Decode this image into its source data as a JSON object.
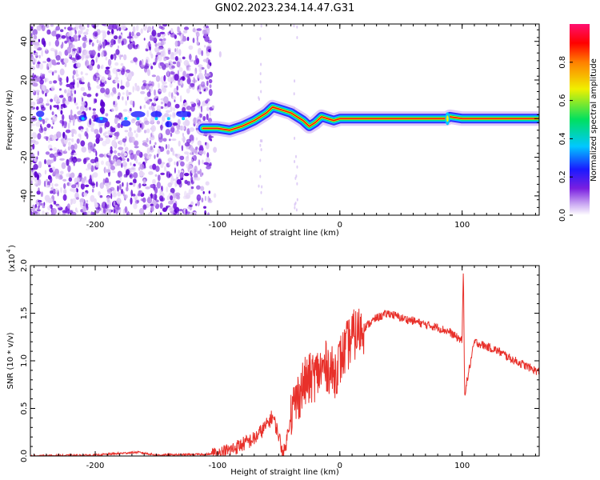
{
  "title": "GN02.2023.234.14.47.G31",
  "chart_data": [
    {
      "type": "heatmap",
      "xlabel": "Height of straight line (km)",
      "ylabel": "Frequency (Hz)",
      "xlim": [
        -253,
        163
      ],
      "ylim": [
        -50,
        49
      ],
      "x_ticks": [
        -200,
        -100,
        0,
        100
      ],
      "y_ticks": [
        -40,
        -20,
        0,
        20,
        40
      ],
      "colorbar": {
        "label": "Normalized spectral amplitude",
        "range": [
          0,
          1
        ],
        "ticks": [
          "0.0",
          "0.2",
          "0.4",
          "0.6",
          "0.8"
        ],
        "colormap": [
          "#ffffff",
          "#c9a6f2",
          "#7a1fe0",
          "#1a1aff",
          "#00c8ff",
          "#00e060",
          "#f0f000",
          "#ff8000",
          "#ff0000",
          "#ff1070"
        ]
      },
      "ridge": {
        "x": [
          -112,
          -100,
          -90,
          -80,
          -70,
          -60,
          -55,
          -50,
          -45,
          -40,
          -35,
          -30,
          -25,
          -20,
          -15,
          -10,
          -5,
          0,
          50,
          87,
          90,
          100,
          163
        ],
        "freq_hz": [
          -5,
          -5,
          -6,
          -4,
          -1,
          3,
          6,
          5,
          4,
          3,
          1,
          -1,
          -4,
          -2,
          1,
          0,
          -1,
          0,
          0,
          0,
          1,
          0,
          0
        ]
      },
      "noise_region_x": [
        -253,
        -105
      ]
    },
    {
      "type": "line",
      "xlabel": "Height of straight line (km)",
      "ylabel": "SNR (10 * v/v)",
      "y_scale_label": "(x10",
      "y_scale_exp": "4",
      "xlim": [
        -253,
        163
      ],
      "ylim": [
        0,
        2.0
      ],
      "x_ticks": [
        -200,
        -100,
        0,
        100
      ],
      "y_ticks": [
        "0.0",
        "0.5",
        "1.0",
        "1.5",
        "2.0"
      ],
      "series": [
        {
          "color": "#e8302a",
          "x": [
            -253,
            -200,
            -165,
            -150,
            -100,
            -90,
            -80,
            -70,
            -60,
            -55,
            -50,
            -47,
            -45,
            -40,
            -35,
            -30,
            -25,
            -20,
            -15,
            -10,
            -5,
            0,
            10,
            20,
            30,
            40,
            50,
            60,
            70,
            80,
            90,
            95,
            100,
            101,
            102,
            110,
            120,
            130,
            140,
            150,
            163
          ],
          "y": [
            0.0,
            0.01,
            0.04,
            0.01,
            0.02,
            0.06,
            0.12,
            0.18,
            0.32,
            0.42,
            0.22,
            0.05,
            0.05,
            0.45,
            0.6,
            0.75,
            0.8,
            0.85,
            0.9,
            0.95,
            0.85,
            1.0,
            1.25,
            1.35,
            1.45,
            1.5,
            1.45,
            1.42,
            1.38,
            1.35,
            1.3,
            1.25,
            1.22,
            2.0,
            0.65,
            1.2,
            1.15,
            1.1,
            1.02,
            0.96,
            0.88
          ]
        }
      ]
    }
  ]
}
